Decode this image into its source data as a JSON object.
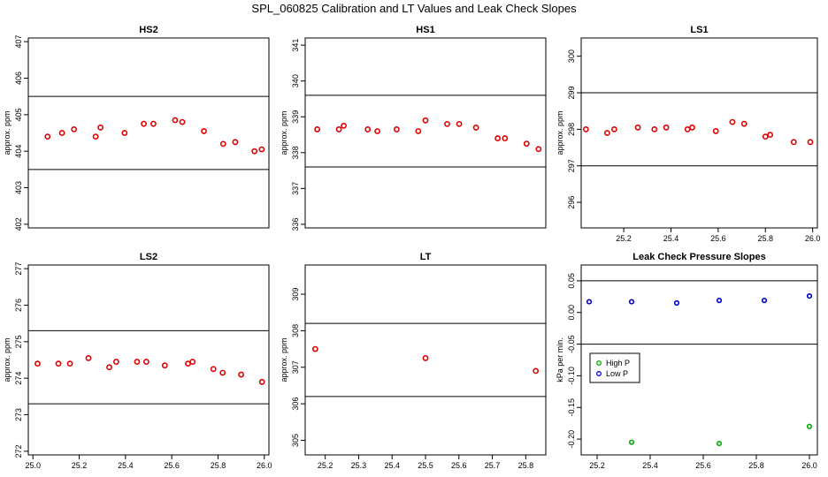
{
  "title": "SPL_060825  Calibration and LT Values and Leak Check Slopes",
  "colors": {
    "calibration_points": "#e00000",
    "high_p": "#00b000",
    "low_p": "#0000cc",
    "axis": "#000000"
  },
  "chart_data": [
    {
      "type": "scatter",
      "title": "HS2",
      "ylabel": "approx. ppm",
      "xlim": [
        25.02,
        26.02
      ],
      "ylim": [
        401.9,
        407.1
      ],
      "yticks": [
        "402",
        "403",
        "404",
        "405",
        "406",
        "407"
      ],
      "xticks": [],
      "hlines": [
        405.5,
        403.5
      ],
      "series": [
        {
          "x": [
            25.1,
            25.16,
            25.21,
            25.3,
            25.32,
            25.42,
            25.5,
            25.54,
            25.63,
            25.66,
            25.75,
            25.83,
            25.88,
            25.96,
            25.99
          ],
          "y": [
            404.4,
            404.5,
            404.6,
            404.4,
            404.65,
            404.5,
            404.75,
            404.75,
            404.85,
            404.8,
            404.55,
            404.2,
            404.25,
            404.0,
            404.05
          ]
        }
      ]
    },
    {
      "type": "scatter",
      "title": "HS1",
      "ylabel": "approx. ppm",
      "xlim": [
        25.02,
        26.02
      ],
      "ylim": [
        335.9,
        341.2
      ],
      "yticks": [
        "336",
        "337",
        "338",
        "339",
        "340",
        "341"
      ],
      "xticks": [],
      "hlines": [
        339.6,
        337.6
      ],
      "series": [
        {
          "x": [
            25.07,
            25.16,
            25.18,
            25.28,
            25.32,
            25.4,
            25.49,
            25.52,
            25.61,
            25.66,
            25.73,
            25.82,
            25.85,
            25.94,
            25.99
          ],
          "y": [
            338.65,
            338.65,
            338.75,
            338.65,
            338.6,
            338.65,
            338.6,
            338.9,
            338.8,
            338.8,
            338.7,
            338.4,
            338.4,
            338.25,
            338.1
          ]
        }
      ]
    },
    {
      "type": "scatter",
      "title": "LS1",
      "ylabel": "approx. ppm",
      "xlim": [
        25.02,
        26.02
      ],
      "ylim": [
        295.3,
        300.5
      ],
      "yticks": [
        "296",
        "297",
        "298",
        "299",
        "300"
      ],
      "xticks": [
        "25.2",
        "25.4",
        "25.6",
        "25.8",
        "26.0"
      ],
      "hlines": [
        299.0,
        297.0
      ],
      "series": [
        {
          "x": [
            25.04,
            25.13,
            25.16,
            25.26,
            25.33,
            25.38,
            25.47,
            25.49,
            25.59,
            25.66,
            25.71,
            25.8,
            25.82,
            25.92,
            25.99
          ],
          "y": [
            298.0,
            297.9,
            298.0,
            298.05,
            298.0,
            298.05,
            298.0,
            298.05,
            297.95,
            298.2,
            298.15,
            297.8,
            297.85,
            297.65,
            297.65
          ]
        }
      ]
    },
    {
      "type": "scatter",
      "title": "LS2",
      "ylabel": "approx. ppm",
      "xlim": [
        24.98,
        26.02
      ],
      "ylim": [
        271.9,
        277.1
      ],
      "yticks": [
        "272",
        "273",
        "274",
        "275",
        "276",
        "277"
      ],
      "xticks": [
        "25.0",
        "25.2",
        "25.4",
        "25.6",
        "25.8",
        "26.0"
      ],
      "hlines": [
        275.3,
        273.3
      ],
      "series": [
        {
          "x": [
            25.02,
            25.11,
            25.16,
            25.24,
            25.33,
            25.36,
            25.45,
            25.49,
            25.57,
            25.67,
            25.69,
            25.78,
            25.82,
            25.9,
            25.99
          ],
          "y": [
            274.4,
            274.4,
            274.4,
            274.55,
            274.3,
            274.45,
            274.45,
            274.45,
            274.35,
            274.4,
            274.45,
            274.25,
            274.15,
            274.1,
            273.9
          ]
        }
      ]
    },
    {
      "type": "scatter",
      "title": "LT",
      "ylabel": "approx. ppm",
      "xlim": [
        25.14,
        25.86
      ],
      "ylim": [
        304.6,
        309.8
      ],
      "yticks": [
        "305",
        "306",
        "307",
        "308",
        "309"
      ],
      "xticks": [
        "25.2",
        "25.3",
        "25.4",
        "25.5",
        "25.6",
        "25.7",
        "25.8"
      ],
      "hlines": [
        308.2,
        306.2
      ],
      "series": [
        {
          "x": [
            25.17,
            25.5,
            25.83
          ],
          "y": [
            307.5,
            307.25,
            306.9
          ]
        }
      ]
    },
    {
      "type": "scatter",
      "title": "Leak Check Pressure Slopes",
      "ylabel": "kPa per min.",
      "xlim": [
        25.14,
        26.03
      ],
      "ylim": [
        -0.225,
        0.075
      ],
      "yticks": [
        "-0.20",
        "-0.15",
        "-0.10",
        "-0.05",
        "0.00",
        "0.05"
      ],
      "xticks": [
        "25.2",
        "25.4",
        "25.6",
        "25.8",
        "26.0"
      ],
      "hlines": [
        0.05,
        -0.05
      ],
      "legend": {
        "placement": "left",
        "entries": [
          "High P",
          "Low P"
        ]
      },
      "series": [
        {
          "name": "High P",
          "x": [
            25.33,
            25.66,
            26.0
          ],
          "y": [
            -0.205,
            -0.207,
            -0.18
          ]
        },
        {
          "name": "Low P",
          "x": [
            25.17,
            25.33,
            25.5,
            25.66,
            25.83,
            26.0
          ],
          "y": [
            0.017,
            0.017,
            0.015,
            0.019,
            0.019,
            0.026
          ]
        }
      ]
    }
  ]
}
